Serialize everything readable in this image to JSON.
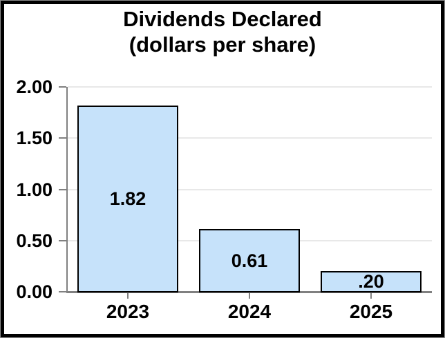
{
  "title": {
    "line1": "Dividends Declared",
    "line2": "(dollars per share)"
  },
  "chart_data": {
    "type": "bar",
    "title": "Dividends Declared (dollars per share)",
    "categories": [
      "2023",
      "2024",
      "2025"
    ],
    "values": [
      1.82,
      0.61,
      0.2
    ],
    "value_labels": [
      "1.82",
      "0.61",
      ".20"
    ],
    "y_tick_labels": [
      "2.00",
      "1.50",
      "1.00",
      "0.50",
      "0.00"
    ],
    "ylim": [
      0,
      2.0
    ],
    "xlabel": "",
    "ylabel": "",
    "grid": "horizontal",
    "legend": "none",
    "colors": {
      "bar_fill": "#C6E2FA",
      "bar_border": "#000000",
      "axis": "#808080",
      "gridline": "#E8E8E8",
      "text": "#000000",
      "frame": "#000000",
      "background": "#FFFFFF"
    }
  }
}
